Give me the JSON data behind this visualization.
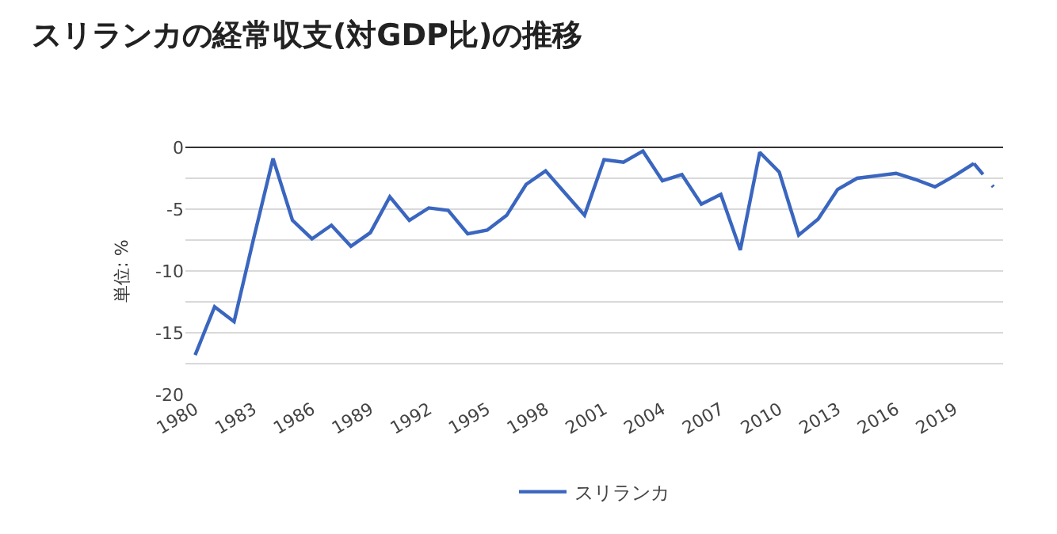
{
  "chart_data": {
    "type": "line",
    "title": "スリランカの経常収支(対GDP比)の推移",
    "ylabel": "単位: %",
    "x": [
      1980,
      1981,
      1982,
      1983,
      1984,
      1985,
      1986,
      1987,
      1988,
      1989,
      1990,
      1991,
      1992,
      1993,
      1994,
      1995,
      1996,
      1997,
      1998,
      1999,
      2000,
      2001,
      2002,
      2003,
      2004,
      2005,
      2006,
      2007,
      2008,
      2009,
      2010,
      2011,
      2012,
      2013,
      2014,
      2015,
      2016,
      2017,
      2018,
      2019,
      2020
    ],
    "series": [
      {
        "name": "スリランカ",
        "color": "#3a66bf",
        "line_style": "solid",
        "values": [
          -16.8,
          -12.9,
          -14.1,
          -7.4,
          -0.9,
          -5.9,
          -7.4,
          -6.3,
          -8.0,
          -6.9,
          -4.0,
          -5.9,
          -4.9,
          -5.1,
          -7.0,
          -6.7,
          -5.5,
          -3.0,
          -1.9,
          -3.7,
          -5.5,
          -1.0,
          -1.2,
          -0.3,
          -2.7,
          -2.2,
          -4.6,
          -3.8,
          -8.3,
          -0.4,
          -2.0,
          -7.1,
          -5.8,
          -3.4,
          -2.5,
          -2.3,
          -2.1,
          -2.6,
          -3.2,
          -2.3,
          -1.3
        ]
      },
      {
        "color": "#3a66bf",
        "line_style": "dashed",
        "x": [
          2020,
          2021
        ],
        "values": [
          -1.3,
          -3.2
        ]
      }
    ],
    "xlim": [
      1979.5,
      2021.5
    ],
    "xticks": [
      1980,
      1983,
      1986,
      1989,
      1992,
      1995,
      1998,
      2001,
      2004,
      2007,
      2010,
      2013,
      2016,
      2019
    ],
    "ylim": [
      -20,
      0
    ],
    "yticks": [
      0,
      {
        "value": -2.5,
        "label": null
      },
      -5,
      {
        "value": -7.5,
        "label": null
      },
      -10,
      {
        "value": -12.5,
        "label": null
      },
      -15,
      {
        "value": -17.5,
        "label": null
      },
      -20
    ],
    "grid": "y",
    "legend": "bottom",
    "marker": "none"
  }
}
